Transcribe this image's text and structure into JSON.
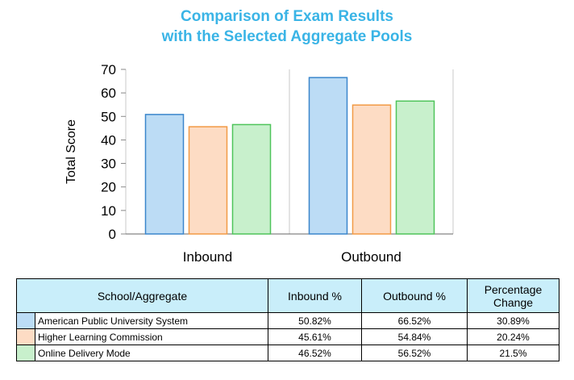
{
  "chart_data": {
    "type": "bar",
    "title": [
      "Comparison of Exam Results",
      "with the Selected Aggregate Pools"
    ],
    "ylabel": "Total Score",
    "xlabel": "",
    "categories": [
      "Inbound",
      "Outbound"
    ],
    "ylim": [
      0,
      70
    ],
    "yticks": [
      0,
      10,
      20,
      30,
      40,
      50,
      60,
      70
    ],
    "grid": "vertical-separators",
    "series": [
      {
        "name": "American Public University System",
        "values": [
          50.82,
          66.52
        ],
        "fill": "#bcdcf5",
        "stroke": "#3a86cc"
      },
      {
        "name": "Higher Learning Commission",
        "values": [
          45.61,
          54.84
        ],
        "fill": "#fddcc4",
        "stroke": "#f29a45"
      },
      {
        "name": "Online Delivery Mode",
        "values": [
          46.52,
          56.52
        ],
        "fill": "#c8f0cc",
        "stroke": "#4ec45a"
      }
    ]
  },
  "table": {
    "headers": [
      "School/Aggregate",
      "Inbound %",
      "Outbound %",
      "Percentage Change"
    ],
    "rows": [
      {
        "name": "American Public University System",
        "inbound": "50.82%",
        "outbound": "66.52%",
        "change": "30.89%"
      },
      {
        "name": "Higher Learning Commission",
        "inbound": "45.61%",
        "outbound": "54.84%",
        "change": "20.24%"
      },
      {
        "name": "Online Delivery Mode",
        "inbound": "46.52%",
        "outbound": "56.52%",
        "change": "21.5%"
      }
    ]
  }
}
